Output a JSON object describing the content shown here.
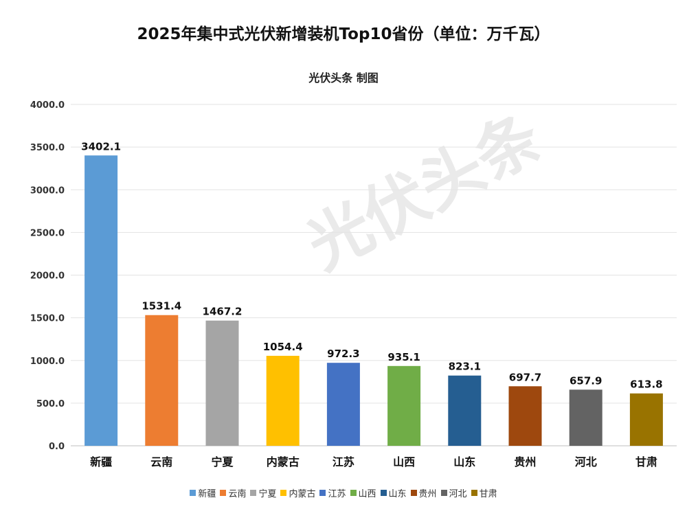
{
  "chart_data": {
    "type": "bar",
    "title": "2025年集中式光伏新增装机Top10省份（单位：万千瓦）",
    "subtitle": "光伏头条 制图",
    "categories": [
      "新疆",
      "云南",
      "宁夏",
      "内蒙古",
      "江苏",
      "山西",
      "山东",
      "贵州",
      "河北",
      "甘肃"
    ],
    "values": [
      3402.1,
      1531.4,
      1467.2,
      1054.4,
      972.3,
      935.1,
      823.1,
      697.7,
      657.9,
      613.8
    ],
    "value_labels": [
      "3402.1",
      "1531.4",
      "1467.2",
      "1054.4",
      "972.3",
      "935.1",
      "823.1",
      "697.7",
      "657.9",
      "613.8"
    ],
    "colors": [
      "#5b9bd5",
      "#ed7d31",
      "#a5a5a5",
      "#ffc000",
      "#4472c4",
      "#70ad47",
      "#255e91",
      "#9e480e",
      "#636363",
      "#997300"
    ],
    "ylim": [
      0,
      4000
    ],
    "yticks": [
      0,
      500,
      1000,
      1500,
      2000,
      2500,
      3000,
      3500,
      4000
    ],
    "ytick_labels": [
      "0.0",
      "500.0",
      "1000.0",
      "1500.0",
      "2000.0",
      "2500.0",
      "3000.0",
      "3500.0",
      "4000.0"
    ],
    "grid": true,
    "legend": "bottom",
    "xlabel": "",
    "ylabel": ""
  },
  "watermark": "光伏头条"
}
